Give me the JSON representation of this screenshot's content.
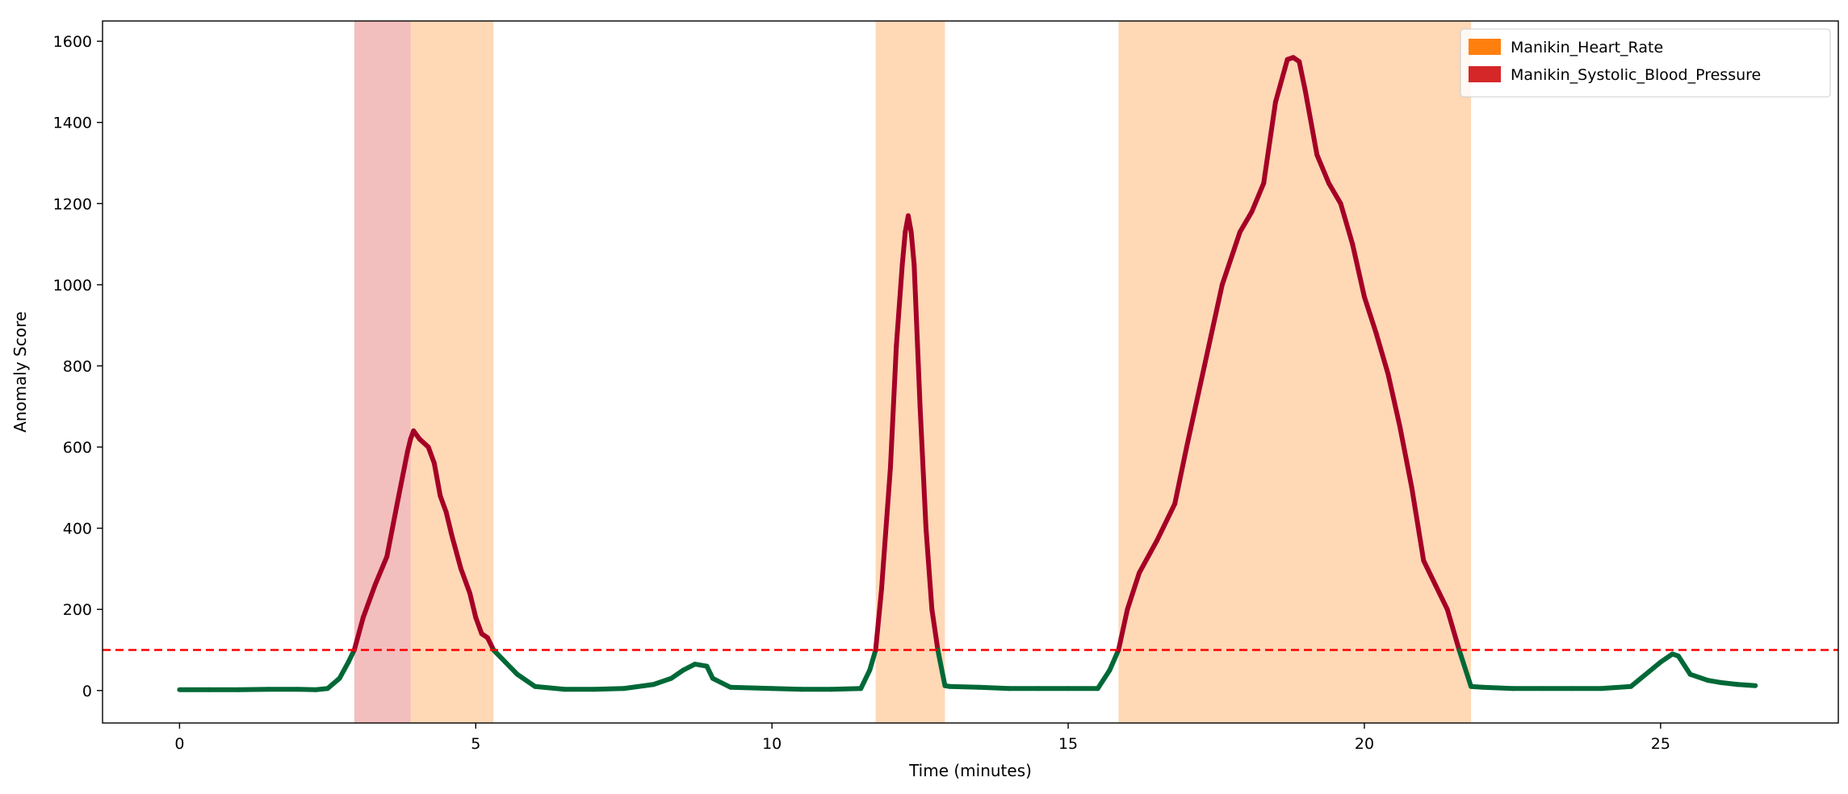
{
  "chart_data": {
    "type": "line",
    "xlabel": "Time (minutes)",
    "ylabel": "Anomaly Score",
    "xlim": [
      -1.3,
      28
    ],
    "ylim": [
      -80,
      1650
    ],
    "xticks": [
      0,
      5,
      10,
      15,
      20,
      25
    ],
    "yticks": [
      0,
      200,
      400,
      600,
      800,
      1000,
      1200,
      1400,
      1600
    ],
    "grid": false,
    "threshold": {
      "value": 100,
      "color": "#ff0000",
      "style": "dashed"
    },
    "legend": {
      "placement": "top-right",
      "entries": [
        {
          "label": "Manikin_Heart_Rate",
          "color": "#ff7f0e"
        },
        {
          "label": "Manikin_Systolic_Blood_Pressure",
          "color": "#d62728"
        }
      ]
    },
    "shaded_regions": [
      {
        "x_start": 2.95,
        "x_end": 3.9,
        "color": "#d62728",
        "opacity": 0.3
      },
      {
        "x_start": 3.9,
        "x_end": 5.3,
        "color": "#ff7f0e",
        "opacity": 0.3
      },
      {
        "x_start": 11.75,
        "x_end": 12.92,
        "color": "#ff7f0e",
        "opacity": 0.3
      },
      {
        "x_start": 15.85,
        "x_end": 21.8,
        "color": "#ff7f0e",
        "opacity": 0.3
      }
    ],
    "series": [
      {
        "normal_color": "#006837",
        "anomaly_color": "#a50026",
        "x": [
          0,
          0.5,
          1.0,
          1.5,
          2.0,
          2.3,
          2.5,
          2.7,
          2.85,
          2.95,
          3.1,
          3.3,
          3.5,
          3.7,
          3.85,
          3.9,
          3.95,
          4.05,
          4.2,
          4.3,
          4.4,
          4.5,
          4.6,
          4.75,
          4.9,
          5.0,
          5.1,
          5.2,
          5.3,
          5.5,
          5.7,
          6.0,
          6.5,
          7.0,
          7.5,
          8.0,
          8.3,
          8.5,
          8.7,
          8.9,
          9.0,
          9.3,
          10.0,
          10.5,
          11.0,
          11.5,
          11.65,
          11.75,
          11.85,
          12.0,
          12.1,
          12.2,
          12.25,
          12.3,
          12.35,
          12.4,
          12.5,
          12.6,
          12.7,
          12.8,
          12.92,
          13.0,
          13.5,
          14.0,
          14.5,
          15.0,
          15.5,
          15.7,
          15.85,
          16.0,
          16.2,
          16.5,
          16.8,
          17.0,
          17.3,
          17.6,
          17.9,
          18.1,
          18.3,
          18.5,
          18.7,
          18.8,
          18.9,
          19.0,
          19.2,
          19.4,
          19.6,
          19.8,
          20.0,
          20.2,
          20.4,
          20.6,
          20.8,
          21.0,
          21.2,
          21.4,
          21.6,
          21.8,
          22.0,
          22.5,
          23.0,
          23.5,
          24.0,
          24.5,
          25.0,
          25.2,
          25.3,
          25.5,
          25.8,
          26.0,
          26.3,
          26.6
        ],
        "y": [
          2,
          2,
          2,
          3,
          3,
          2,
          5,
          30,
          70,
          100,
          180,
          260,
          330,
          480,
          590,
          620,
          640,
          620,
          600,
          560,
          480,
          440,
          380,
          300,
          240,
          180,
          140,
          130,
          100,
          70,
          40,
          10,
          3,
          3,
          5,
          15,
          30,
          50,
          65,
          60,
          30,
          8,
          5,
          3,
          3,
          5,
          50,
          100,
          250,
          550,
          850,
          1050,
          1130,
          1170,
          1130,
          1050,
          700,
          400,
          200,
          100,
          12,
          10,
          8,
          5,
          5,
          5,
          5,
          50,
          100,
          200,
          290,
          370,
          460,
          600,
          800,
          1000,
          1130,
          1180,
          1250,
          1450,
          1555,
          1560,
          1550,
          1480,
          1320,
          1250,
          1200,
          1100,
          970,
          880,
          780,
          650,
          500,
          320,
          260,
          200,
          100,
          10,
          8,
          5,
          5,
          5,
          5,
          10,
          70,
          90,
          85,
          40,
          25,
          20,
          15,
          12
        ]
      }
    ]
  }
}
